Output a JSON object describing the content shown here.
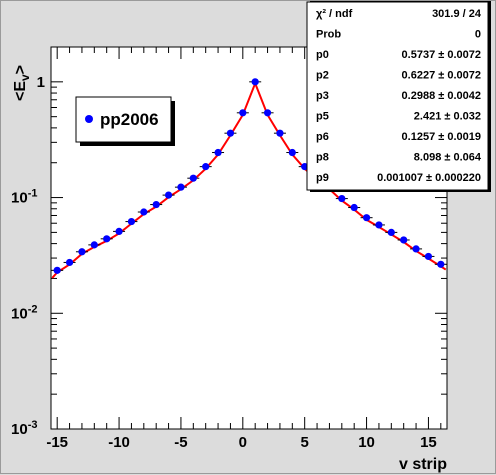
{
  "chart_data": {
    "type": "scatter",
    "xlabel": "v strip",
    "ylabel": "<E_v>",
    "xlim": [
      -15.5,
      16.5
    ],
    "ylim": [
      0.001,
      2
    ],
    "yscale": "log",
    "grid": false,
    "x_tick_labels": [
      "-15",
      "-10",
      "-5",
      "0",
      "5",
      "10",
      "15"
    ],
    "y_tick_labels": [
      {
        "base": "10",
        "exp": "-3"
      },
      {
        "base": "10",
        "exp": "-2"
      },
      {
        "base": "10",
        "exp": "-1"
      },
      {
        "base": "1",
        "exp": ""
      }
    ],
    "legend": {
      "label": "pp2006",
      "position": "top-left"
    },
    "series": [
      {
        "name": "pp2006",
        "color": "#0000ff",
        "x": [
          -15,
          -14,
          -13,
          -12,
          -11,
          -10,
          -9,
          -8,
          -7,
          -6,
          -5,
          -4,
          -3,
          -2,
          -1,
          0,
          1,
          2,
          3,
          4,
          5,
          6,
          7,
          8,
          9,
          10,
          11,
          12,
          13,
          14,
          15,
          16
        ],
        "y": [
          0.0235,
          0.0275,
          0.034,
          0.039,
          0.044,
          0.051,
          0.062,
          0.075,
          0.087,
          0.105,
          0.123,
          0.147,
          0.185,
          0.245,
          0.36,
          0.54,
          1.0,
          0.54,
          0.36,
          0.245,
          0.185,
          0.147,
          0.123,
          0.098,
          0.082,
          0.067,
          0.058,
          0.05,
          0.043,
          0.036,
          0.031,
          0.0265
        ]
      }
    ],
    "fit": {
      "color": "#ff0000"
    },
    "stats": [
      {
        "label": "χ² / ndf",
        "value": "301.9 / 24"
      },
      {
        "label": "Prob",
        "value": "0"
      },
      {
        "label": "p0",
        "value": "0.5737 ± 0.0072"
      },
      {
        "label": "p2",
        "value": "0.6227 ± 0.0072"
      },
      {
        "label": "p3",
        "value": "0.2988 ± 0.0042"
      },
      {
        "label": "p5",
        "value": "2.421 ± 0.032"
      },
      {
        "label": "p6",
        "value": "0.1257 ± 0.0019"
      },
      {
        "label": "p8",
        "value": "8.098 ± 0.064"
      },
      {
        "label": "p9",
        "value": "0.001007 ± 0.000220"
      }
    ]
  }
}
